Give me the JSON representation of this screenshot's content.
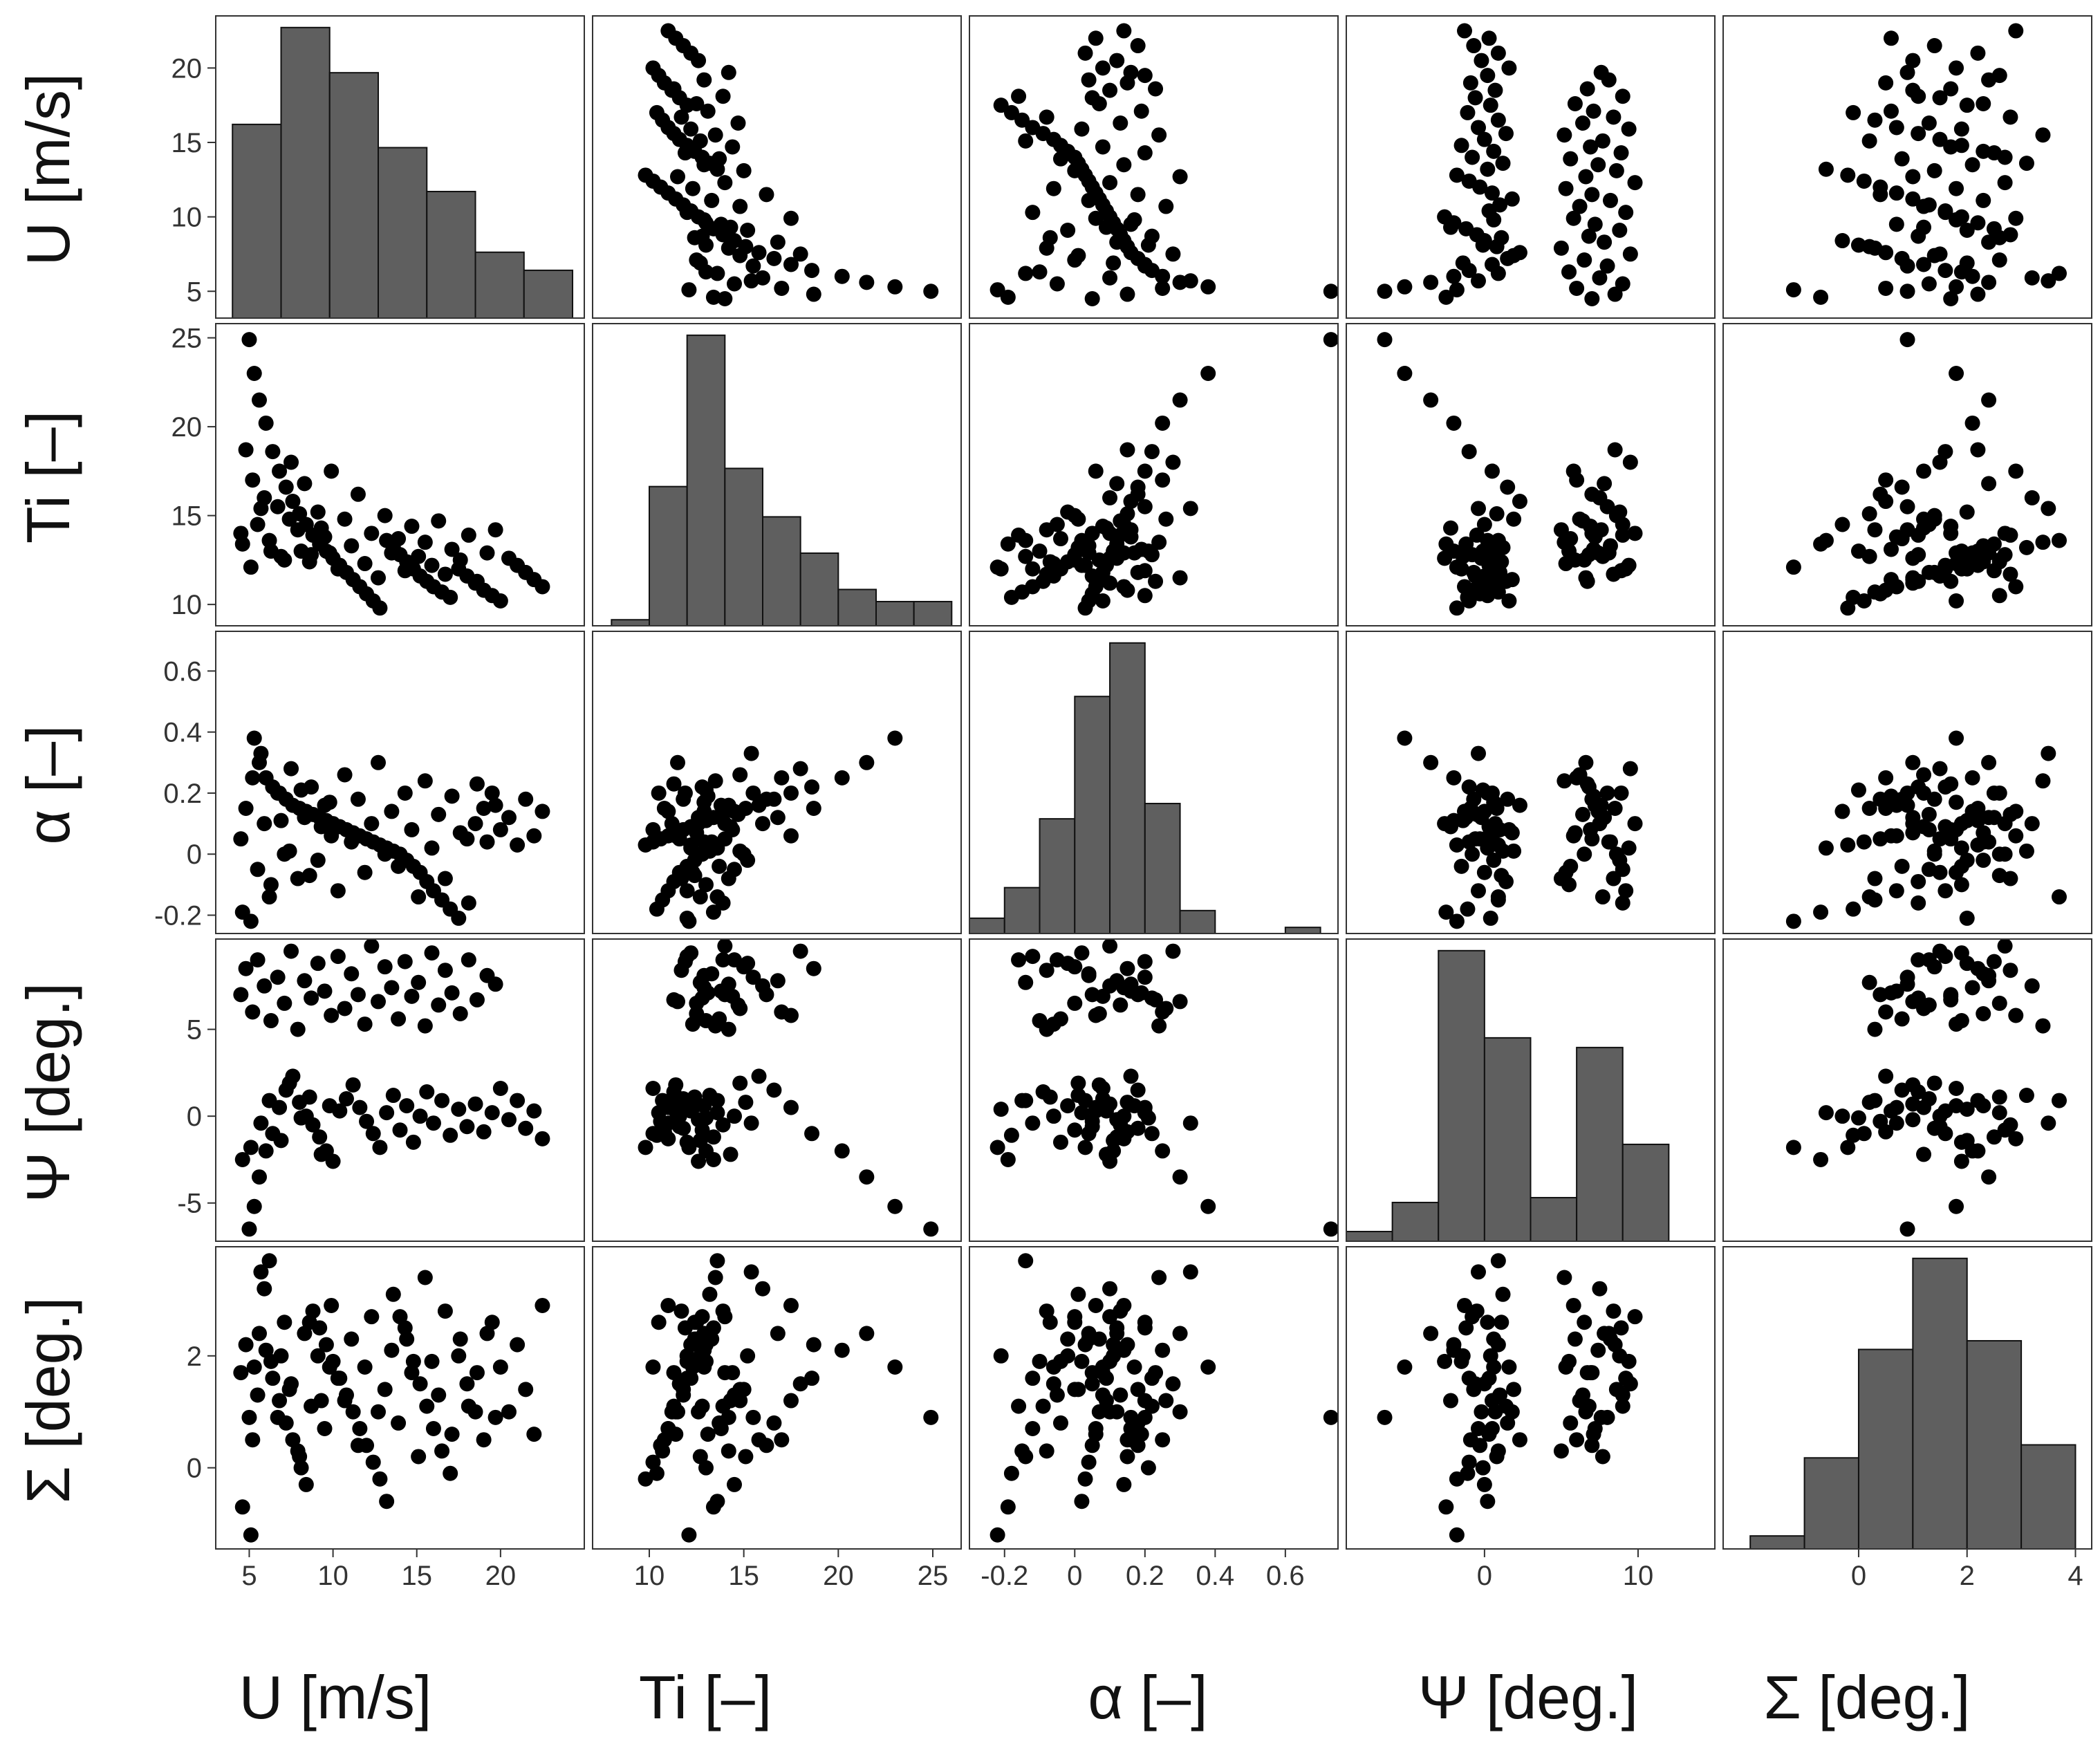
{
  "chart_data": {
    "type": "scatter-matrix",
    "variables": [
      {
        "id": "U",
        "label": "U [m/s]",
        "range": [
          3,
          25
        ],
        "ticks": [
          5,
          10,
          15,
          20
        ]
      },
      {
        "id": "Ti",
        "label": "Ti [–]",
        "range": [
          7,
          26.5
        ],
        "ticks": [
          10,
          15,
          20,
          25
        ]
      },
      {
        "id": "alpha",
        "label": "α [–]",
        "range": [
          -0.3,
          0.75
        ],
        "ticks": [
          -0.2,
          0,
          0.2,
          0.4,
          0.6
        ]
      },
      {
        "id": "Psi",
        "label": "Ψ [deg.]",
        "range": [
          -9,
          15
        ],
        "ticks": [
          0,
          10
        ]
      },
      {
        "id": "Sigma",
        "label": "Σ [deg.]",
        "range": [
          -2.5,
          4.3
        ],
        "ticks": [
          0,
          2,
          4
        ]
      }
    ],
    "row_axes": [
      {
        "label": "U [m/s]",
        "range": [
          3.2,
          23.5
        ],
        "ticks": [
          5,
          10,
          15,
          20
        ]
      },
      {
        "label": "Ti [–]",
        "range": [
          8.8,
          25.8
        ],
        "ticks": [
          10,
          15,
          20,
          25
        ]
      },
      {
        "label": "α [–]",
        "range": [
          -0.26,
          0.73
        ],
        "ticks": [
          -0.2,
          0,
          0.2,
          0.4,
          0.6
        ]
      },
      {
        "label": "Ψ [deg.]",
        "range": [
          -7.2,
          10.2
        ],
        "ticks": [
          -5,
          0,
          5
        ]
      },
      {
        "label": "Σ [deg.]",
        "range": [
          -1.45,
          3.95
        ],
        "ticks": [
          0,
          2
        ]
      }
    ],
    "histograms": [
      {
        "variable": "U",
        "edges": [
          4,
          6.9,
          9.8,
          12.7,
          15.6,
          18.5,
          21.4,
          24.3
        ],
        "counts": [
          15,
          22.5,
          19,
          13.2,
          9.8,
          5.1,
          3.7
        ]
      },
      {
        "variable": "Ti",
        "edges": [
          8,
          10,
          12,
          14,
          16,
          18,
          20,
          22,
          24,
          26
        ],
        "counts": [
          0.5,
          11.5,
          24,
          13,
          9,
          6,
          3,
          2,
          2
        ]
      },
      {
        "variable": "alpha",
        "edges": [
          -0.3,
          -0.2,
          -0.1,
          0,
          0.1,
          0.2,
          0.3,
          0.4,
          0.5,
          0.6,
          0.7
        ],
        "counts": [
          2,
          6,
          15,
          31,
          38,
          17,
          3,
          0,
          0,
          0.8
        ]
      },
      {
        "variable": "Psi",
        "edges": [
          -9,
          -6,
          -3,
          0,
          3,
          6,
          9,
          12
        ],
        "counts": [
          1,
          4,
          30,
          21,
          4.5,
          20,
          10
        ]
      },
      {
        "variable": "Sigma",
        "edges": [
          -2,
          -1,
          0,
          1,
          2,
          3,
          4
        ],
        "counts": [
          1.5,
          10.5,
          23,
          33.5,
          24,
          12
        ]
      }
    ],
    "points": [
      [
        5.0,
        24.9,
        0.73,
        -6.5,
        0.9
      ],
      [
        5.3,
        23.0,
        0.38,
        -5.2,
        1.8
      ],
      [
        5.6,
        21.5,
        0.3,
        -3.5,
        2.4
      ],
      [
        6.0,
        20.2,
        0.25,
        -2.0,
        2.1
      ],
      [
        6.4,
        18.6,
        0.22,
        -1.0,
        1.6
      ],
      [
        6.8,
        17.5,
        0.2,
        0.5,
        1.2
      ],
      [
        7.2,
        16.6,
        0.18,
        1.5,
        0.8
      ],
      [
        7.6,
        15.8,
        0.16,
        2.3,
        0.5
      ],
      [
        8.0,
        15.1,
        0.15,
        0.8,
        0.2
      ],
      [
        8.4,
        14.5,
        0.14,
        0.0,
        -0.3
      ],
      [
        8.8,
        13.9,
        0.13,
        -0.5,
        2.8
      ],
      [
        9.2,
        13.4,
        0.12,
        -1.2,
        2.5
      ],
      [
        9.6,
        13.0,
        0.11,
        -2.0,
        2.2
      ],
      [
        10.0,
        12.6,
        0.1,
        -2.6,
        1.9
      ],
      [
        10.4,
        12.2,
        0.09,
        0.3,
        1.6
      ],
      [
        10.8,
        11.8,
        0.08,
        1.0,
        1.3
      ],
      [
        11.2,
        11.4,
        0.07,
        1.8,
        1.0
      ],
      [
        11.6,
        11.0,
        0.06,
        0.5,
        0.7
      ],
      [
        12.0,
        10.6,
        0.05,
        -0.3,
        0.4
      ],
      [
        12.4,
        10.2,
        0.04,
        -1.0,
        0.1
      ],
      [
        12.8,
        9.8,
        0.03,
        -1.8,
        -0.2
      ],
      [
        13.2,
        13.6,
        0.02,
        0.2,
        -0.6
      ],
      [
        13.6,
        13.2,
        0.01,
        1.2,
        3.1
      ],
      [
        14.0,
        12.8,
        0.0,
        -0.8,
        2.7
      ],
      [
        14.4,
        12.4,
        -0.02,
        0.6,
        2.3
      ],
      [
        14.8,
        12.0,
        -0.04,
        -1.5,
        1.9
      ],
      [
        15.2,
        11.6,
        -0.06,
        0.0,
        1.5
      ],
      [
        15.6,
        11.3,
        -0.09,
        1.4,
        1.1
      ],
      [
        16.0,
        11.0,
        -0.12,
        -0.4,
        0.7
      ],
      [
        16.5,
        10.7,
        -0.15,
        0.9,
        0.3
      ],
      [
        17.0,
        10.4,
        -0.18,
        -1.1,
        -0.1
      ],
      [
        17.5,
        12.0,
        -0.21,
        0.4,
        2.0
      ],
      [
        18.0,
        11.6,
        0.05,
        -0.6,
        1.5
      ],
      [
        18.5,
        11.2,
        0.1,
        0.7,
        1.0
      ],
      [
        19.0,
        10.8,
        0.15,
        -0.9,
        0.5
      ],
      [
        19.5,
        10.5,
        0.2,
        0.2,
        2.6
      ],
      [
        20.0,
        10.2,
        0.08,
        1.6,
        1.8
      ],
      [
        20.5,
        12.6,
        0.12,
        -0.2,
        1.0
      ],
      [
        21.0,
        12.2,
        0.03,
        0.9,
        2.2
      ],
      [
        21.5,
        11.8,
        0.18,
        -0.7,
        1.4
      ],
      [
        22.0,
        11.4,
        0.06,
        0.3,
        0.6
      ],
      [
        22.5,
        11.0,
        0.14,
        -1.3,
        2.9
      ],
      [
        4.5,
        14.0,
        0.05,
        7.0,
        1.7
      ],
      [
        4.8,
        18.7,
        0.15,
        8.5,
        2.2
      ],
      [
        5.2,
        17.0,
        0.25,
        6.0,
        0.5
      ],
      [
        5.5,
        14.5,
        -0.05,
        9.0,
        1.3
      ],
      [
        5.9,
        16.0,
        0.1,
        7.5,
        3.2
      ],
      [
        6.3,
        13.0,
        -0.1,
        5.5,
        1.9
      ],
      [
        6.7,
        15.5,
        0.2,
        8.0,
        0.9
      ],
      [
        7.1,
        12.5,
        0.0,
        6.5,
        2.6
      ],
      [
        7.5,
        18.0,
        0.28,
        9.5,
        1.5
      ],
      [
        7.9,
        14.2,
        -0.08,
        5.0,
        0.3
      ],
      [
        8.3,
        16.8,
        0.12,
        7.8,
        2.4
      ],
      [
        8.7,
        12.8,
        0.22,
        6.8,
        1.1
      ],
      [
        9.1,
        15.2,
        -0.02,
        8.8,
        2.0
      ],
      [
        9.5,
        13.8,
        0.16,
        7.2,
        0.7
      ],
      [
        9.9,
        17.5,
        0.06,
        5.8,
        2.9
      ],
      [
        10.3,
        12.0,
        -0.12,
        9.2,
        1.6
      ],
      [
        10.7,
        14.8,
        0.26,
        6.2,
        1.2
      ],
      [
        11.1,
        13.3,
        0.04,
        8.2,
        2.3
      ],
      [
        11.5,
        16.2,
        0.18,
        7.0,
        0.4
      ],
      [
        11.9,
        12.3,
        -0.06,
        5.3,
        1.8
      ],
      [
        12.3,
        14.0,
        0.1,
        9.8,
        2.7
      ],
      [
        12.7,
        11.5,
        0.3,
        6.6,
        1.0
      ],
      [
        13.1,
        15.0,
        0.0,
        8.6,
        1.4
      ],
      [
        13.5,
        12.9,
        0.14,
        7.4,
        2.1
      ],
      [
        13.9,
        13.7,
        -0.04,
        5.6,
        0.8
      ],
      [
        14.3,
        11.9,
        0.2,
        8.9,
        2.5
      ],
      [
        14.7,
        14.4,
        0.08,
        6.9,
        1.7
      ],
      [
        15.1,
        12.7,
        -0.14,
        7.7,
        0.2
      ],
      [
        15.5,
        13.5,
        0.24,
        5.2,
        3.4
      ],
      [
        15.9,
        12.2,
        0.02,
        9.4,
        1.9
      ],
      [
        16.3,
        14.7,
        0.13,
        6.4,
        1.3
      ],
      [
        16.7,
        11.7,
        -0.08,
        8.4,
        2.8
      ],
      [
        17.1,
        13.1,
        0.19,
        7.1,
        0.6
      ],
      [
        17.6,
        12.5,
        0.07,
        5.9,
        2.3
      ],
      [
        18.1,
        13.9,
        -0.16,
        9.0,
        1.1
      ],
      [
        18.6,
        11.3,
        0.23,
        6.7,
        1.7
      ],
      [
        19.2,
        12.9,
        0.04,
        8.1,
        2.4
      ],
      [
        19.7,
        14.2,
        0.16,
        7.6,
        0.9
      ],
      [
        4.6,
        13.4,
        -0.19,
        -2.5,
        -0.7
      ],
      [
        5.1,
        12.1,
        -0.22,
        -1.8,
        -1.2
      ],
      [
        5.7,
        15.4,
        0.33,
        -0.4,
        3.5
      ],
      [
        6.2,
        13.6,
        -0.14,
        0.9,
        3.7
      ],
      [
        6.9,
        12.7,
        0.11,
        -1.4,
        2.0
      ],
      [
        7.4,
        14.8,
        0.01,
        1.9,
        1.4
      ],
      [
        8.1,
        13.0,
        0.21,
        -0.1,
        0.0
      ],
      [
        8.6,
        12.4,
        -0.07,
        1.1,
        2.6
      ],
      [
        9.3,
        14.3,
        0.09,
        -2.2,
        1.2
      ],
      [
        9.8,
        12.9,
        0.17,
        0.6,
        1.8
      ]
    ]
  }
}
